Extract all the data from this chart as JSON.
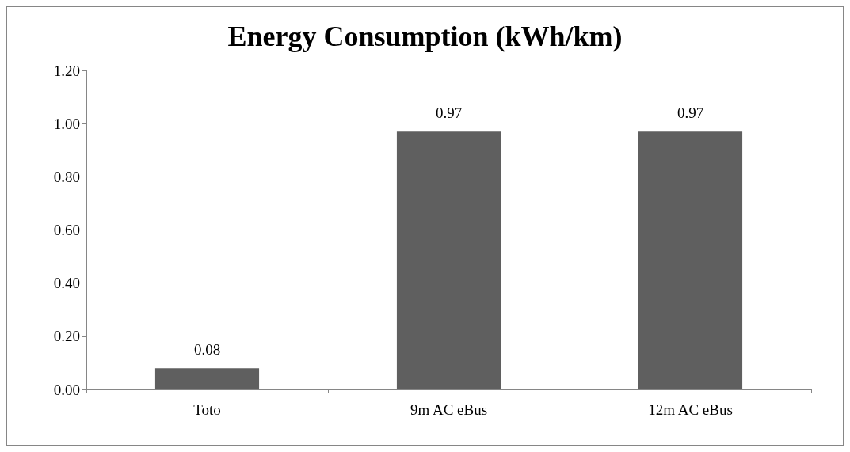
{
  "chart_data": {
    "type": "bar",
    "title": "Energy Consumption (kWh/km)",
    "categories": [
      "Toto",
      "9m AC eBus",
      "12m AC eBus"
    ],
    "values": [
      0.08,
      0.97,
      0.97
    ],
    "color": "#5f5f5f",
    "ylim": [
      0,
      1.2
    ],
    "yticks": [
      {
        "value": 0,
        "label": "0.00"
      },
      {
        "value": 0.2,
        "label": "0.20"
      },
      {
        "value": 0.4,
        "label": "0.40"
      },
      {
        "value": 0.6,
        "label": "0.60"
      },
      {
        "value": 0.8,
        "label": "0.80"
      },
      {
        "value": 1.0,
        "label": "1.00"
      },
      {
        "value": 1.2,
        "label": "1.20"
      }
    ],
    "value_labels": [
      "0.08",
      "0.97",
      "0.97"
    ],
    "grid": false
  }
}
